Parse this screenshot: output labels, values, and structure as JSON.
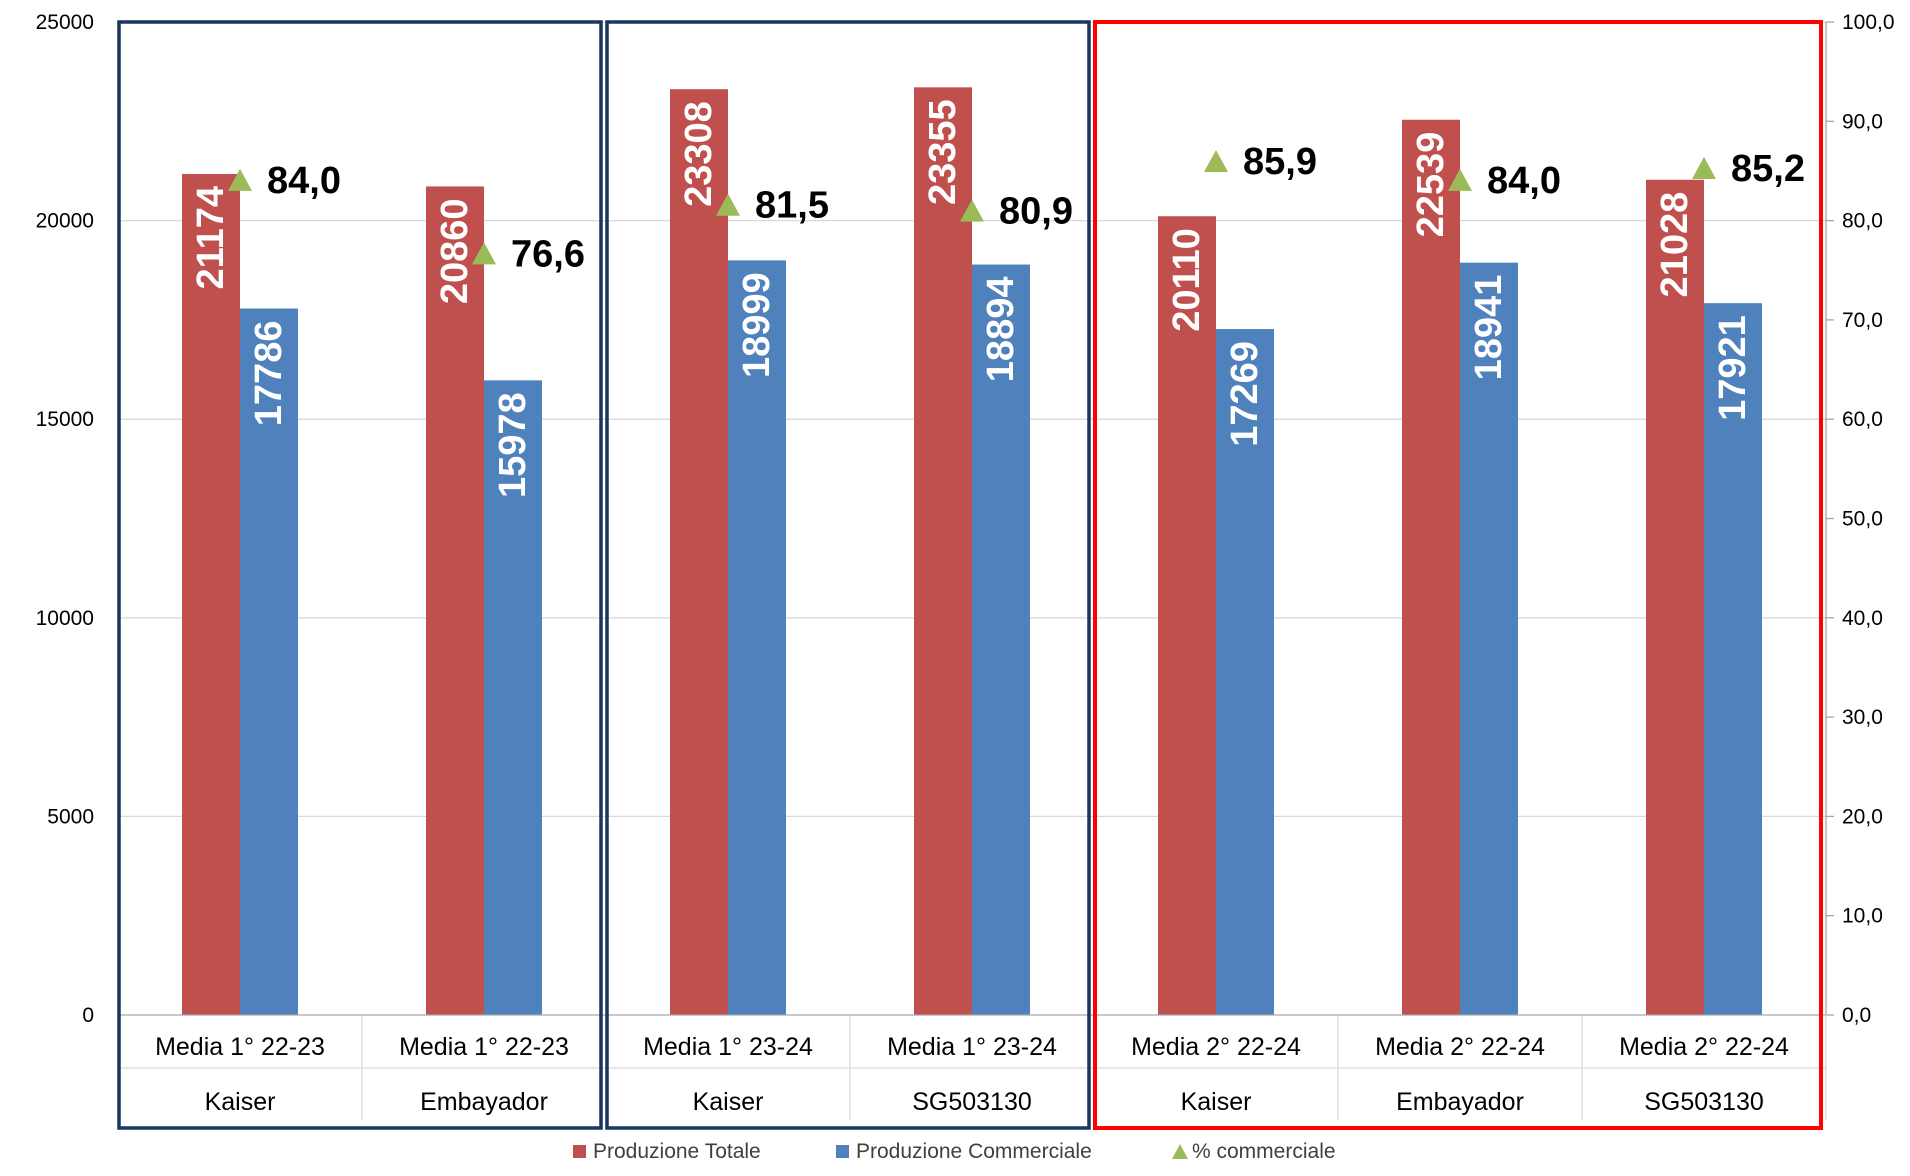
{
  "chart_data": {
    "type": "bar",
    "subtype": "grouped-bar-with-secondary-markers",
    "groups": [
      {
        "line1": "Media 1° 22-23",
        "line2": "Kaiser"
      },
      {
        "line1": "Media 1° 22-23",
        "line2": "Embayador"
      },
      {
        "line1": "Media 1° 23-24",
        "line2": "Kaiser"
      },
      {
        "line1": "Media 1° 23-24",
        "line2": "SG503130"
      },
      {
        "line1": "Media 2° 22-24",
        "line2": "Kaiser"
      },
      {
        "line1": "Media 2° 22-24",
        "line2": "Embayador"
      },
      {
        "line1": "Media 2° 22-24",
        "line2": "SG503130"
      }
    ],
    "series": [
      {
        "name": "Produzione Totale",
        "axis": "left",
        "color": "#c0504d",
        "values": [
          21174,
          20860,
          23308,
          23355,
          20110,
          22539,
          21028
        ],
        "labels": [
          "21174",
          "20860",
          "23308",
          "23355",
          "20110",
          "22539",
          "21028"
        ]
      },
      {
        "name": "Produzione Commerciale",
        "axis": "left",
        "color": "#4f81bd",
        "values": [
          17786,
          15978,
          18999,
          18894,
          17269,
          18941,
          17921
        ],
        "labels": [
          "17786",
          "15978",
          "18999",
          "18894",
          "17269",
          "18941",
          "17921"
        ]
      },
      {
        "name": "% commerciale",
        "axis": "right",
        "marker": "triangle",
        "color": "#9bbb59",
        "values": [
          84.0,
          76.6,
          81.5,
          80.9,
          85.9,
          84.0,
          85.2
        ],
        "labels": [
          "84,0",
          "76,6",
          "81,5",
          "80,9",
          "85,9",
          "84,0",
          "85,2"
        ]
      }
    ],
    "y_left": {
      "min": 0,
      "max": 25000,
      "ticks": [
        "0",
        "5000",
        "10000",
        "15000",
        "20000",
        "25000"
      ]
    },
    "y_right": {
      "min": 0,
      "max": 100,
      "ticks": [
        "0,0",
        "10,0",
        "20,0",
        "30,0",
        "40,0",
        "50,0",
        "60,0",
        "70,0",
        "80,0",
        "90,0",
        "100,0"
      ]
    },
    "grid": true,
    "legend_position": "bottom",
    "highlight_boxes": [
      {
        "first_group": 0,
        "last_group": 1,
        "color": "#17375e"
      },
      {
        "first_group": 2,
        "last_group": 3,
        "color": "#17375e"
      },
      {
        "first_group": 4,
        "last_group": 6,
        "color": "#ff0000"
      }
    ]
  }
}
